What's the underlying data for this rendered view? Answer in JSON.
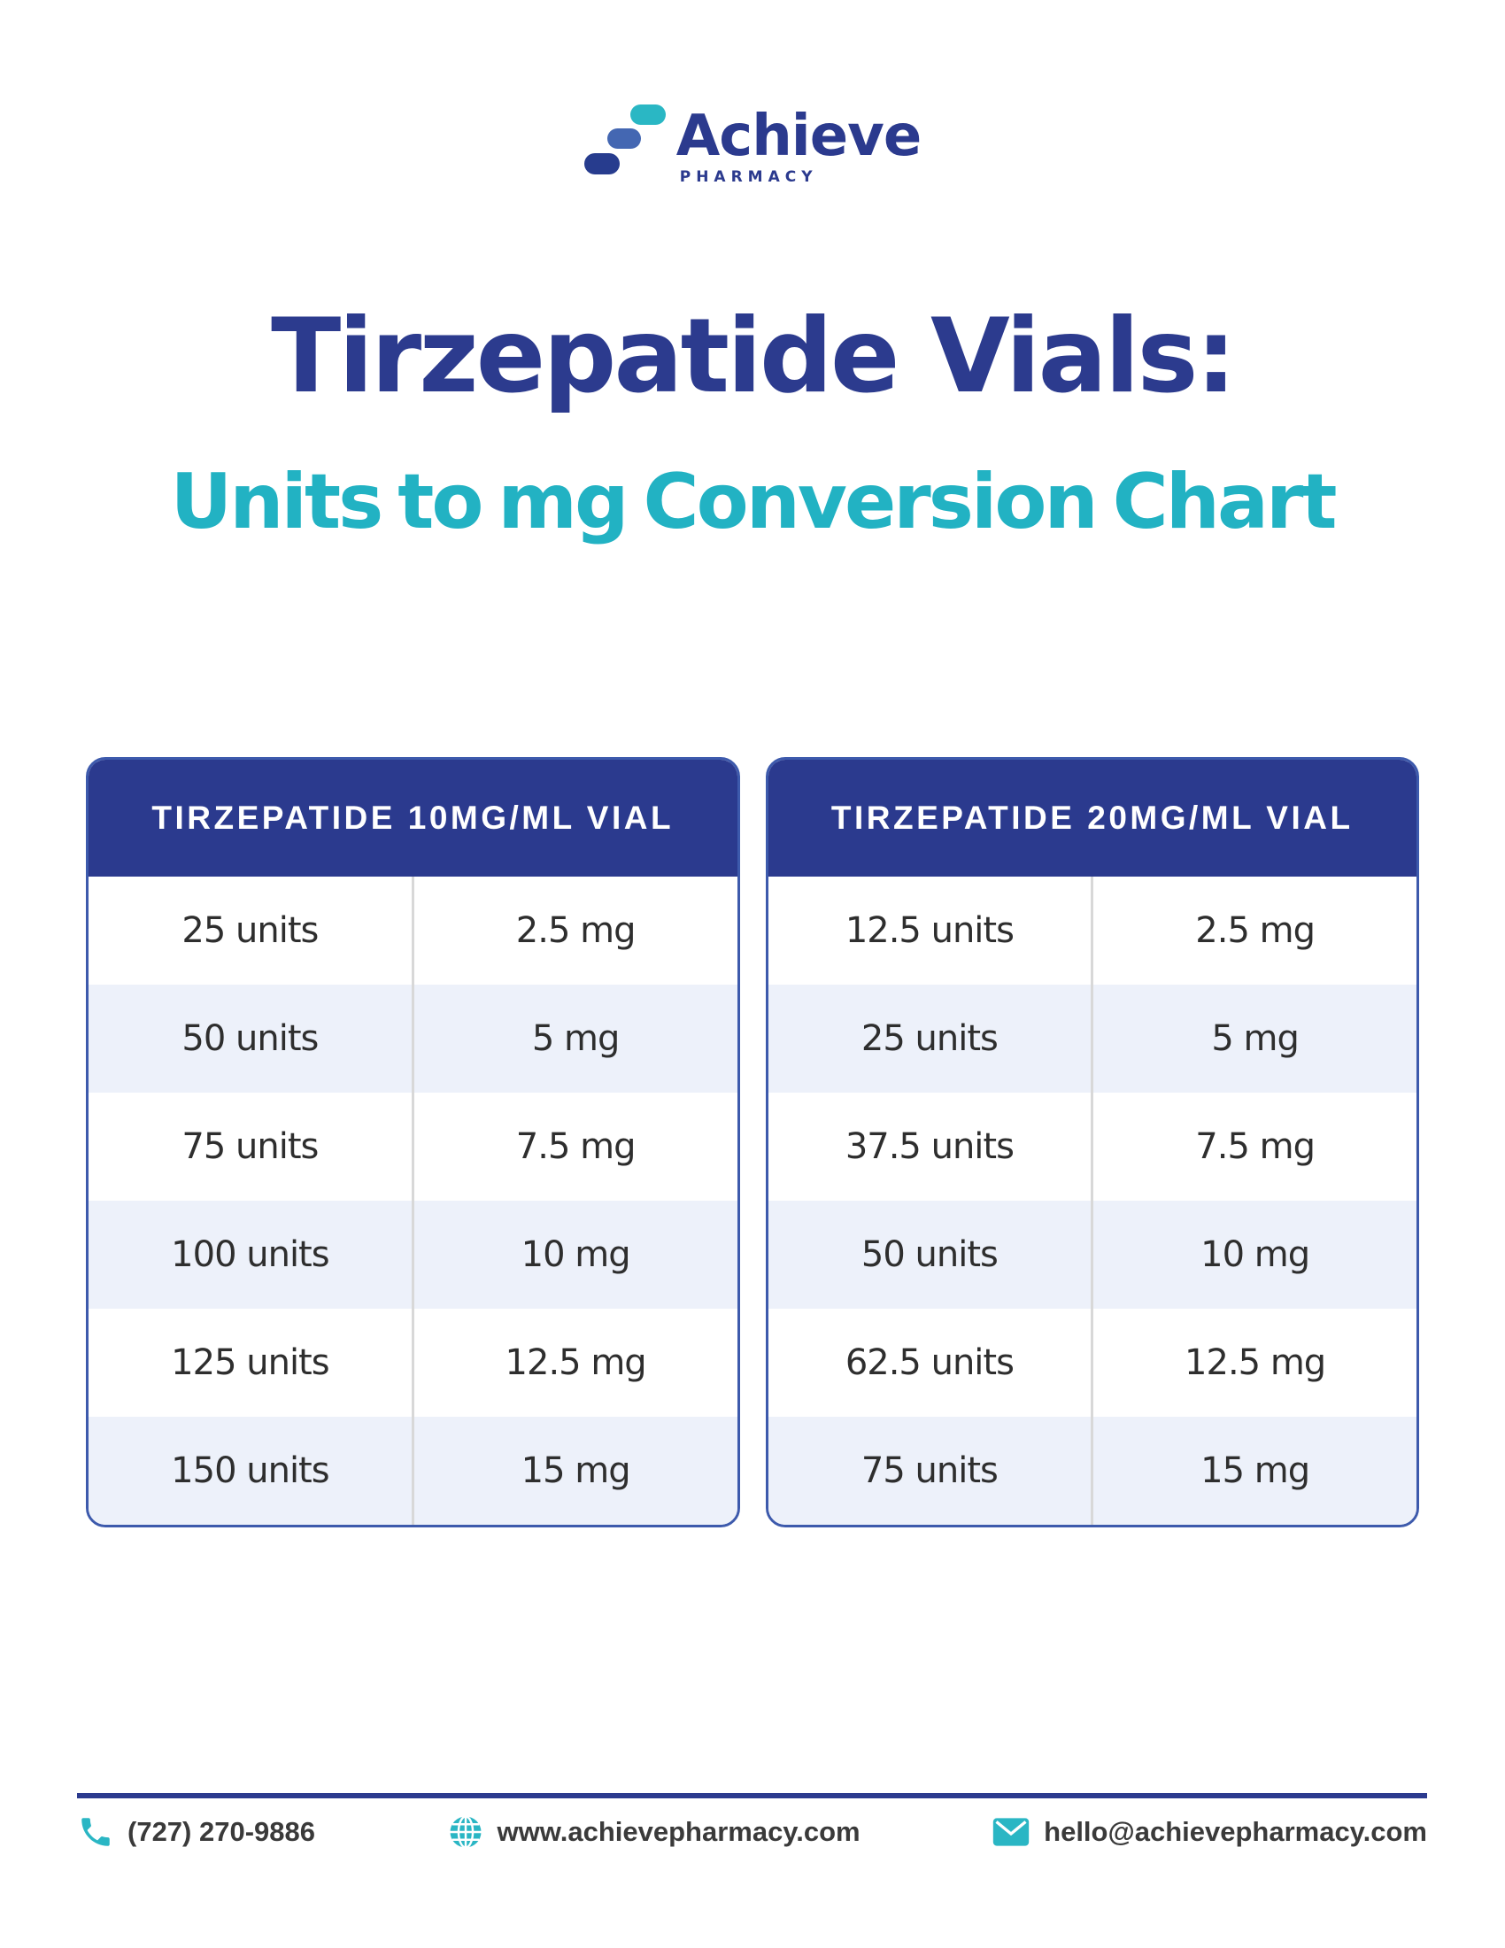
{
  "brand": {
    "name": "Achieve",
    "subtitle": "PHARMACY",
    "colors": {
      "navy": "#2b3a8e",
      "blue": "#4467b2",
      "teal": "#2ab7c4"
    }
  },
  "header": {
    "title": "Tirzepatide Vials:",
    "subtitle": "Units to mg Conversion Chart"
  },
  "tables": [
    {
      "title": "TIRZEPATIDE 10MG/ML VIAL",
      "rows": [
        {
          "units": "25 units",
          "mg": "2.5 mg"
        },
        {
          "units": "50 units",
          "mg": "5 mg"
        },
        {
          "units": "75 units",
          "mg": "7.5 mg"
        },
        {
          "units": "100 units",
          "mg": "10 mg"
        },
        {
          "units": "125 units",
          "mg": "12.5 mg"
        },
        {
          "units": "150 units",
          "mg": "15 mg"
        }
      ]
    },
    {
      "title": "TIRZEPATIDE 20MG/ML VIAL",
      "rows": [
        {
          "units": "12.5 units",
          "mg": "2.5 mg"
        },
        {
          "units": "25 units",
          "mg": "5 mg"
        },
        {
          "units": "37.5 units",
          "mg": "7.5 mg"
        },
        {
          "units": "50 units",
          "mg": "10 mg"
        },
        {
          "units": "62.5 units",
          "mg": "12.5 mg"
        },
        {
          "units": "75 units",
          "mg": "15 mg"
        }
      ]
    }
  ],
  "footer": {
    "phone": "(727) 270-9886",
    "website": "www.achievepharmacy.com",
    "email": "hello@achievepharmacy.com",
    "icons": [
      "phone-icon",
      "globe-icon",
      "mail-icon"
    ],
    "icon_color": "#2ab6c4"
  }
}
